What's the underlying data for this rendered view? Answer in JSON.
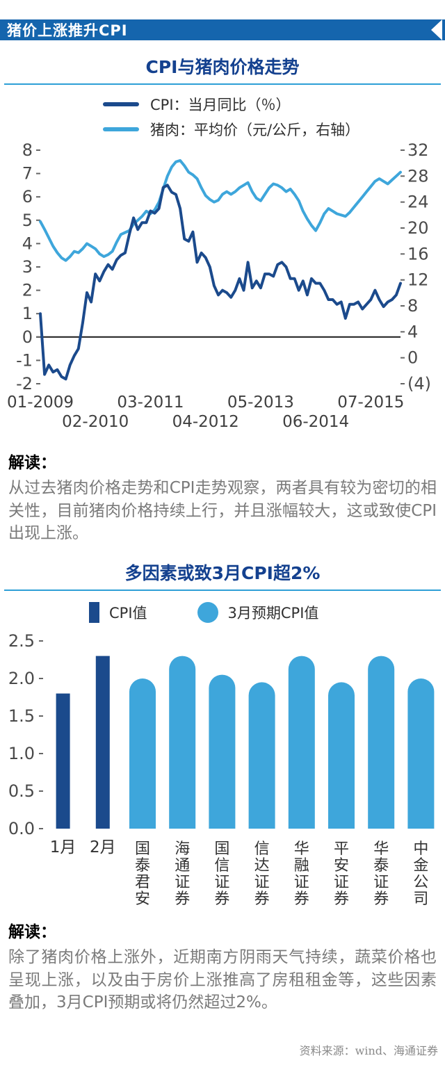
{
  "banner": {
    "title": "猪价上涨推升CPI"
  },
  "interpretation1": {
    "label": "解读：",
    "text": "从过去猪肉价格走势和CPI走势观察，两者具有较为密切的相关性，目前猪肉价格持续上行，并且涨幅较大，这或致使CPI出现上涨。"
  },
  "interpretation2": {
    "label": "解读：",
    "text": "除了猪肉价格上涨外，近期南方阴雨天气持续，蔬菜价格也呈现上涨，以及由于房价上涨推高了房租租金等，这些因素叠加，3月CPI预期或将仍然超过2%。"
  },
  "source": {
    "text": "资料来源：wind、海通证券"
  },
  "colors": {
    "banner_blue": "#1565ad",
    "title_blue": "#14418f",
    "rule_blue": "#2d9fd6",
    "dark_blue": "#1b4a8c",
    "light_blue": "#3ea6db"
  },
  "chart_data": [
    {
      "type": "line",
      "title": "CPI与猪肉价格走势",
      "x_start": "2009-01",
      "x_end": "2016-02",
      "frequency": "monthly",
      "legend_position": "top",
      "grid": false,
      "left_axis": {
        "min": -2,
        "max": 8,
        "ticks": [
          8,
          7,
          6,
          5,
          4,
          3,
          2,
          1,
          0,
          -1,
          -2
        ]
      },
      "right_axis": {
        "min": -4,
        "max": 32,
        "tick_values": [
          32,
          28,
          24,
          20,
          16,
          12,
          8,
          4,
          0,
          -4
        ],
        "tick_labels": [
          "32",
          "28",
          "24",
          "20",
          "16",
          "12",
          "8",
          "4",
          "0",
          "(4)"
        ]
      },
      "x_ticks": [
        {
          "label": "01-2009",
          "index": 0,
          "row": 0
        },
        {
          "label": "02-2010",
          "index": 13,
          "row": 1
        },
        {
          "label": "03-2011",
          "index": 26,
          "row": 0
        },
        {
          "label": "04-2012",
          "index": 39,
          "row": 1
        },
        {
          "label": "05-2013",
          "index": 52,
          "row": 0
        },
        {
          "label": "06-2014",
          "index": 65,
          "row": 1
        },
        {
          "label": "07-2015",
          "index": 78,
          "row": 0
        }
      ],
      "series": [
        {
          "name": "CPI：当月同比（％）",
          "axis": "left",
          "color": "#1b4a8c",
          "values": [
            1.0,
            -1.6,
            -1.2,
            -1.5,
            -1.4,
            -1.7,
            -1.8,
            -1.2,
            -0.8,
            -0.5,
            0.6,
            1.9,
            1.5,
            2.7,
            2.4,
            2.8,
            3.1,
            2.9,
            3.3,
            3.5,
            3.6,
            4.4,
            5.1,
            4.6,
            4.9,
            4.9,
            5.4,
            5.3,
            5.5,
            6.4,
            6.5,
            6.2,
            6.1,
            5.5,
            4.2,
            4.1,
            4.5,
            3.2,
            3.6,
            3.4,
            3.0,
            2.2,
            1.8,
            2.0,
            1.9,
            1.7,
            2.0,
            2.5,
            2.0,
            3.2,
            2.1,
            2.4,
            2.1,
            2.7,
            2.7,
            2.6,
            3.1,
            3.2,
            3.0,
            2.5,
            2.5,
            2.0,
            2.4,
            1.8,
            2.5,
            2.3,
            2.3,
            2.0,
            1.6,
            1.6,
            1.4,
            1.5,
            0.8,
            1.4,
            1.4,
            1.5,
            1.2,
            1.4,
            1.6,
            2.0,
            1.6,
            1.3,
            1.5,
            1.6,
            1.8,
            2.3
          ]
        },
        {
          "name": "猪肉：平均价（元/公斤，右轴）",
          "axis": "right",
          "color": "#3ea6db",
          "values": [
            21.0,
            19.8,
            18.5,
            17.2,
            16.2,
            15.4,
            15.0,
            15.6,
            16.4,
            16.2,
            16.8,
            17.6,
            17.2,
            16.8,
            16.0,
            15.6,
            15.9,
            16.4,
            17.8,
            19.0,
            19.3,
            19.6,
            20.6,
            21.2,
            21.8,
            22.6,
            22.2,
            22.8,
            24.0,
            26.0,
            28.0,
            29.4,
            30.2,
            30.4,
            29.6,
            28.6,
            28.2,
            27.6,
            26.2,
            25.0,
            24.4,
            24.0,
            24.3,
            25.2,
            25.6,
            25.2,
            25.6,
            26.2,
            26.6,
            27.0,
            25.6,
            24.6,
            24.2,
            25.2,
            26.2,
            26.8,
            26.6,
            26.2,
            25.6,
            26.0,
            25.2,
            24.2,
            22.6,
            21.4,
            20.4,
            19.6,
            20.8,
            22.2,
            23.0,
            22.6,
            22.2,
            22.0,
            21.8,
            22.4,
            23.2,
            24.0,
            24.8,
            25.6,
            26.4,
            27.2,
            27.6,
            27.2,
            26.8,
            27.4,
            28.0,
            28.6
          ]
        }
      ]
    },
    {
      "type": "bar",
      "title": "多因素或致3月CPI超2%",
      "legend": [
        {
          "name": "CPI值",
          "color": "#1b4a8c",
          "shape": "square"
        },
        {
          "name": "3月预期CPI值",
          "color": "#3ea6db",
          "shape": "circle"
        }
      ],
      "categories": [
        "1月",
        "2月",
        "国泰君安",
        "海通证券",
        "国信证券",
        "信达证券",
        "华融证券",
        "平安证券",
        "华泰证券",
        "中金公司"
      ],
      "values": [
        1.8,
        2.3,
        2.0,
        2.3,
        2.05,
        1.95,
        2.3,
        1.95,
        2.3,
        2.0
      ],
      "bar_styles": [
        "dark",
        "dark",
        "light",
        "light",
        "light",
        "light",
        "light",
        "light",
        "light",
        "light"
      ],
      "colors": {
        "dark": "#1b4a8c",
        "light": "#3ea6db"
      },
      "ylim": [
        0,
        2.5
      ],
      "yticks": [
        0.0,
        0.5,
        1.0,
        1.5,
        2.0,
        2.5
      ],
      "grid": false
    }
  ]
}
